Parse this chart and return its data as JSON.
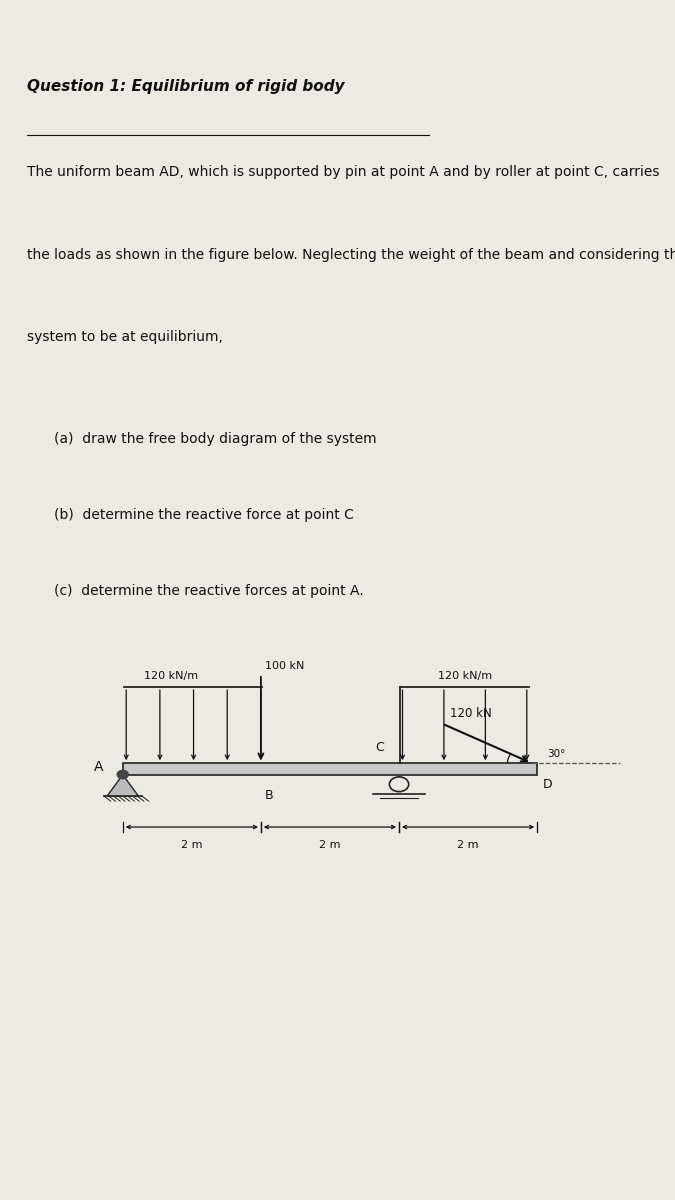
{
  "title": "Question 1: Equilibrium of rigid body",
  "paragraph_lines": [
    "The uniform beam AD, which is supported by pin at point A and by roller at point C, carries",
    "the loads as shown in the figure below. Neglecting the weight of the beam and considering the",
    "system to be at equilibrium,"
  ],
  "items": [
    "(a)  draw the free body diagram of the system",
    "(b)  determine the reactive force at point C",
    "(c)  determine the reactive forces at point A."
  ],
  "beam_label_A": "A",
  "beam_label_B": "B",
  "beam_label_C": "C",
  "beam_label_D": "D",
  "dist_load_left_label": "120 kN/m",
  "point_load_label": "100 kN",
  "dist_load_right_label": "120 kN/m",
  "point_force_label": "120 kN",
  "angle_label": "30°",
  "dim_labels": [
    "2 m",
    "2 m",
    "2 m"
  ],
  "bg_color": "#ede9e3",
  "text_color": "#111111",
  "beam_color": "#222222",
  "arrow_color": "#111111",
  "dashed_color": "#555555",
  "dim_color": "#111111"
}
